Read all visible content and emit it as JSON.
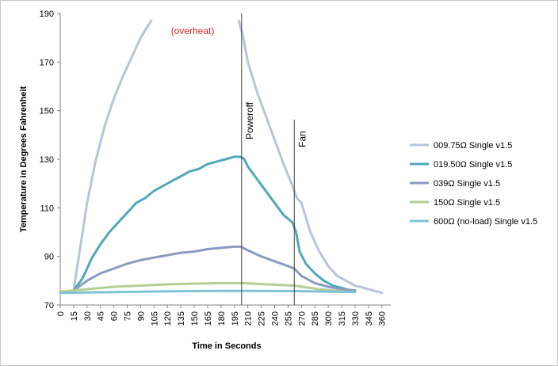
{
  "chart_data": {
    "type": "line",
    "xlabel": "Time in Seconds",
    "ylabel": "Temperature in Degrees Fahrenheit",
    "xlim": [
      0,
      370
    ],
    "ylim": [
      70,
      190
    ],
    "yticks": [
      70,
      90,
      110,
      130,
      150,
      170,
      190
    ],
    "xticks": [
      0,
      15,
      30,
      45,
      60,
      75,
      90,
      105,
      120,
      135,
      150,
      165,
      180,
      195,
      210,
      225,
      240,
      255,
      270,
      285,
      300,
      315,
      330,
      345,
      360
    ],
    "grid": false,
    "legend_position": "right",
    "annotations": {
      "overheat": "(overheat)",
      "poweroff": "Poweroff",
      "fan": "Fan"
    },
    "markers": {
      "poweroff_x": 203,
      "fan_x": 262
    },
    "series": [
      {
        "name": "009.75Ω Single v1.5",
        "color": "#b9c4dc",
        "segments": [
          [
            [
              15,
              76
            ],
            [
              20,
              88
            ],
            [
              25,
              100
            ],
            [
              30,
              112
            ],
            [
              40,
              130
            ],
            [
              50,
              144
            ],
            [
              60,
              155
            ],
            [
              70,
              164
            ],
            [
              80,
              172
            ],
            [
              90,
              180
            ],
            [
              100,
              186
            ],
            [
              102,
              187
            ]
          ],
          [
            [
              200,
              187
            ],
            [
              205,
              180
            ],
            [
              210,
              170
            ],
            [
              220,
              158
            ],
            [
              230,
              148
            ],
            [
              240,
              138
            ],
            [
              250,
              128
            ],
            [
              260,
              119
            ],
            [
              265,
              114
            ],
            [
              270,
              112
            ],
            [
              275,
              106
            ],
            [
              280,
              100
            ],
            [
              285,
              96
            ],
            [
              290,
              92
            ],
            [
              300,
              86
            ],
            [
              310,
              82
            ],
            [
              320,
              80
            ],
            [
              330,
              78
            ],
            [
              340,
              77
            ],
            [
              350,
              76
            ],
            [
              360,
              75
            ]
          ]
        ]
      },
      {
        "name": "019.50Ω Single v1.5",
        "color": "#4fa9b9",
        "segments": [
          [
            [
              15,
              76
            ],
            [
              25,
              81
            ],
            [
              35,
              89
            ],
            [
              45,
              95
            ],
            [
              55,
              100
            ],
            [
              65,
              104
            ],
            [
              75,
              108
            ],
            [
              85,
              112
            ],
            [
              95,
              114
            ],
            [
              105,
              117
            ],
            [
              115,
              119
            ],
            [
              125,
              121
            ],
            [
              135,
              123
            ],
            [
              145,
              125
            ],
            [
              155,
              126
            ],
            [
              165,
              128
            ],
            [
              175,
              129
            ],
            [
              185,
              130
            ],
            [
              195,
              131
            ],
            [
              202,
              131
            ],
            [
              206,
              130
            ],
            [
              210,
              127
            ],
            [
              220,
              122
            ],
            [
              230,
              117
            ],
            [
              240,
              112
            ],
            [
              250,
              107
            ],
            [
              260,
              104
            ],
            [
              264,
              100
            ],
            [
              268,
              92
            ],
            [
              275,
              87
            ],
            [
              285,
              83
            ],
            [
              295,
              80
            ],
            [
              305,
              78
            ],
            [
              315,
              77
            ],
            [
              325,
              76
            ],
            [
              330,
              76
            ]
          ]
        ]
      },
      {
        "name": "039Ω Single v1.5",
        "color": "#8c9ac0",
        "segments": [
          [
            [
              15,
              76
            ],
            [
              30,
              80
            ],
            [
              45,
              83
            ],
            [
              60,
              85
            ],
            [
              75,
              87
            ],
            [
              90,
              88.5
            ],
            [
              105,
              89.5
            ],
            [
              120,
              90.5
            ],
            [
              135,
              91.5
            ],
            [
              150,
              92
            ],
            [
              165,
              93
            ],
            [
              180,
              93.5
            ],
            [
              195,
              94
            ],
            [
              202,
              94
            ],
            [
              210,
              92.5
            ],
            [
              225,
              90
            ],
            [
              240,
              88
            ],
            [
              255,
              86
            ],
            [
              262,
              85
            ],
            [
              270,
              82
            ],
            [
              285,
              79
            ],
            [
              300,
              77.5
            ],
            [
              315,
              76.5
            ],
            [
              330,
              76
            ]
          ]
        ]
      },
      {
        "name": "150Ω Single v1.5",
        "color": "#b5ce92",
        "segments": [
          [
            [
              0,
              75.5
            ],
            [
              30,
              76.5
            ],
            [
              60,
              77.5
            ],
            [
              90,
              78
            ],
            [
              120,
              78.5
            ],
            [
              150,
              78.8
            ],
            [
              180,
              79
            ],
            [
              203,
              79
            ],
            [
              230,
              78.5
            ],
            [
              262,
              78
            ],
            [
              290,
              76.5
            ],
            [
              320,
              75.5
            ],
            [
              330,
              75.3
            ]
          ]
        ]
      },
      {
        "name": "600Ω (no-load) Single v1.5",
        "color": "#7fc4d4",
        "segments": [
          [
            [
              0,
              75
            ],
            [
              60,
              75.3
            ],
            [
              120,
              75.6
            ],
            [
              180,
              75.8
            ],
            [
              210,
              75.8
            ],
            [
              262,
              75.7
            ],
            [
              300,
              75.5
            ],
            [
              330,
              75.3
            ]
          ]
        ]
      }
    ]
  }
}
